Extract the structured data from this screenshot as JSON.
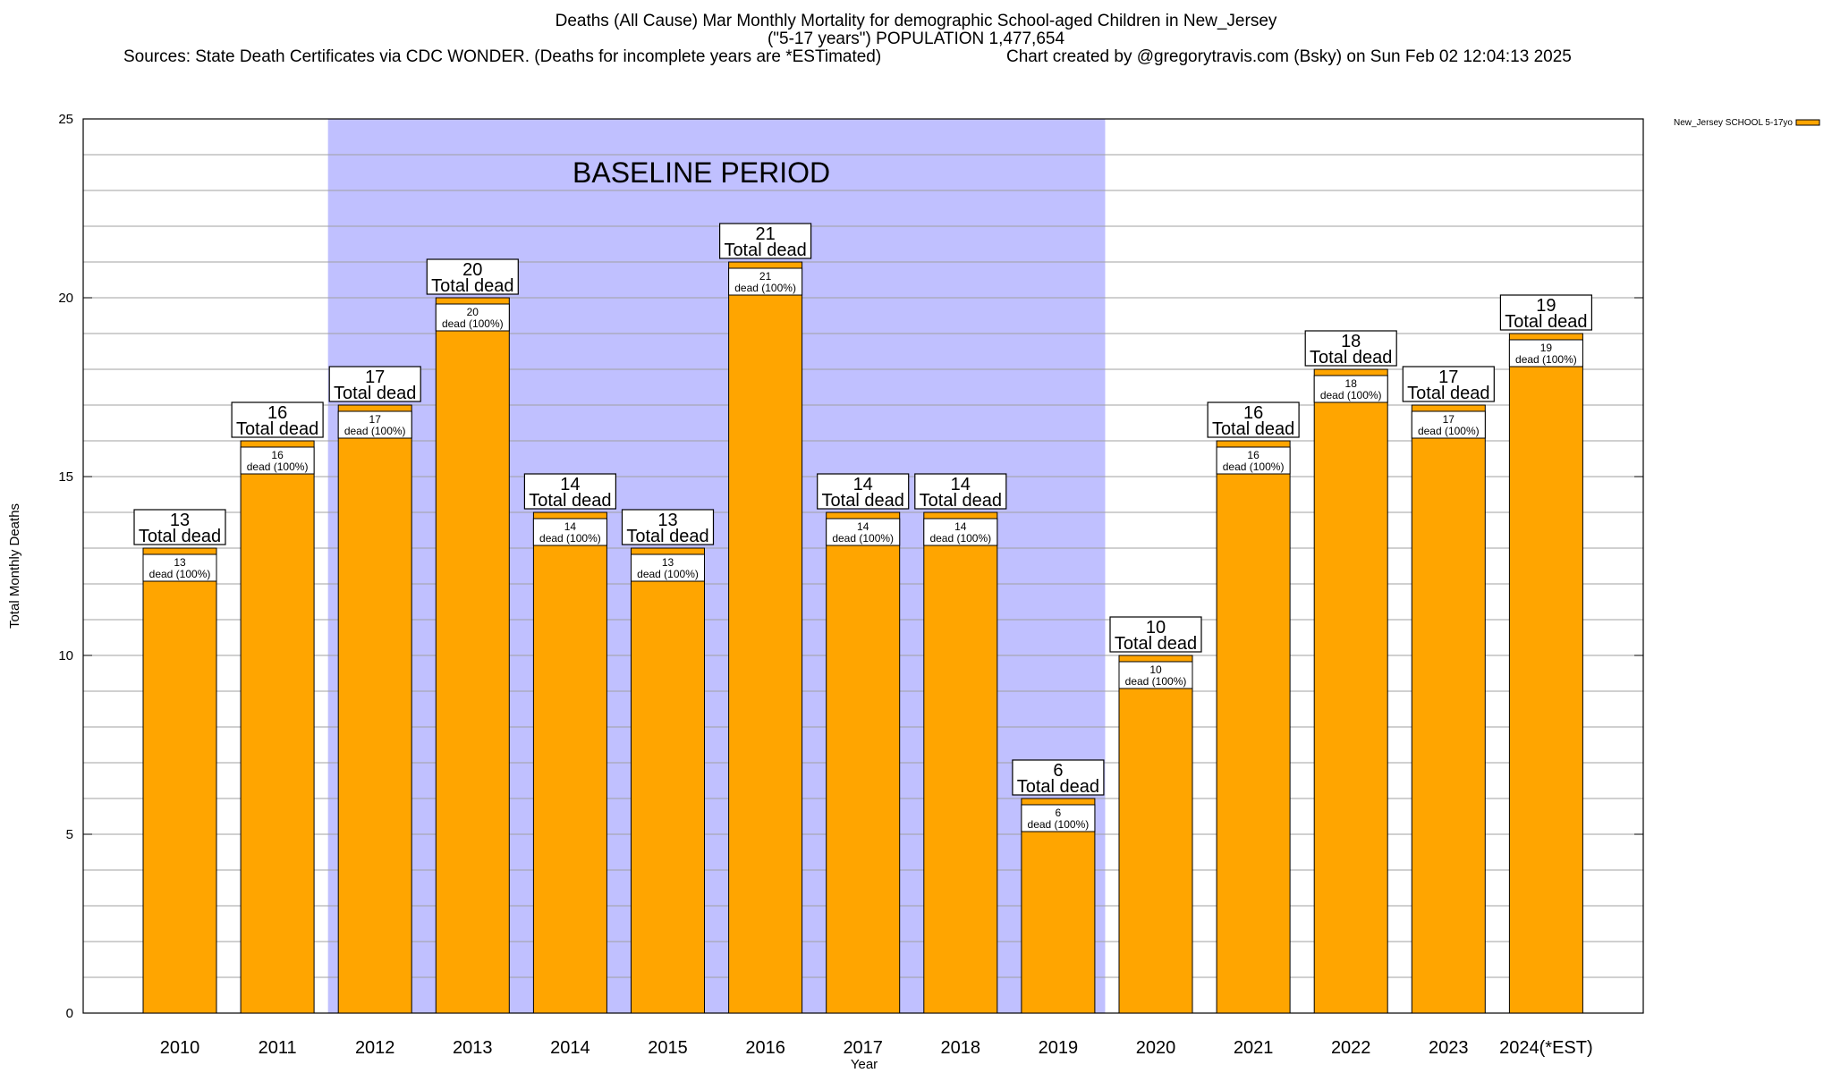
{
  "header": {
    "title_line1": "Deaths (All Cause) Mar Monthly Mortality for demographic School-aged Children in New_Jersey",
    "title_line2": "(\"5-17 years\") POPULATION 1,477,654",
    "sources": "Sources: State Death Certificates via CDC WONDER. (Deaths for incomplete years are *ESTimated)",
    "credit": "Chart created by @gregorytravis.com (Bsky) on Sun Feb 02 12:04:13 2025"
  },
  "chart_data": {
    "type": "bar",
    "categories": [
      "2010",
      "2011",
      "2012",
      "2013",
      "2014",
      "2015",
      "2016",
      "2017",
      "2018",
      "2019",
      "2020",
      "2021",
      "2022",
      "2023",
      "2024(*EST)"
    ],
    "series": [
      {
        "name": "New_Jersey SCHOOL 5-17yo",
        "values": [
          13,
          16,
          17,
          20,
          14,
          13,
          21,
          14,
          14,
          6,
          10,
          16,
          18,
          17,
          19
        ],
        "color": "#ffa500"
      }
    ],
    "total_label_line1": [
      "13",
      "16",
      "17",
      "20",
      "14",
      "13",
      "21",
      "14",
      "14",
      "6",
      "10",
      "16",
      "18",
      "17",
      "19"
    ],
    "total_label_line2": "Total dead",
    "inner_label_line1": [
      "13",
      "16",
      "17",
      "20",
      "14",
      "13",
      "21",
      "14",
      "14",
      "6",
      "10",
      "16",
      "18",
      "17",
      "19"
    ],
    "inner_label_line2": "dead (100%)",
    "xlabel": "Year",
    "ylabel": "Total Monthly Deaths",
    "ylim": [
      0,
      25
    ],
    "y_ticks": [
      "0",
      "5",
      "10",
      "15",
      "20",
      "25"
    ],
    "baseline": {
      "label": "BASELINE PERIOD",
      "from": "2012",
      "to": "2019",
      "color": "#c0c0ff"
    },
    "grid": true,
    "legend_position": "top-right"
  }
}
